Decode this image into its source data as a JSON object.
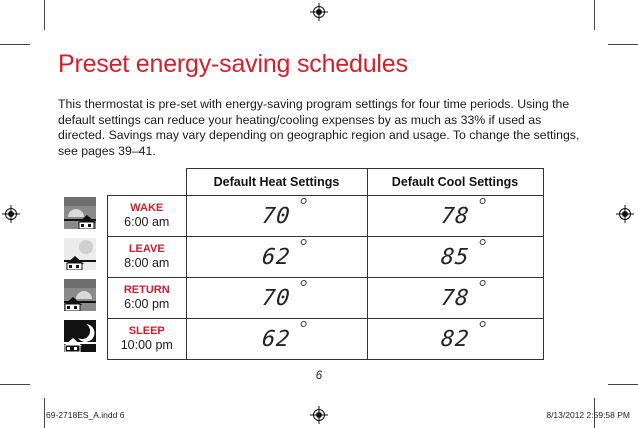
{
  "title": "Preset energy-saving schedules",
  "intro": "This thermostat is pre-set with energy-saving program settings for four time periods. Using the default settings can reduce your heating/cooling expenses by as much as 33% if used as directed. Savings may vary depending on geographic region and usage. To change the settings, see pages 39–41.",
  "table": {
    "headers": [
      "Default Heat Settings",
      "Default Cool Settings"
    ],
    "rows": [
      {
        "period": "WAKE",
        "time": "6:00 am",
        "heat": "70",
        "cool": "78",
        "icon": "sunrise-house-icon"
      },
      {
        "period": "LEAVE",
        "time": "8:00 am",
        "heat": "62",
        "cool": "85",
        "icon": "sun-house-icon"
      },
      {
        "period": "RETURN",
        "time": "6:00 pm",
        "heat": "70",
        "cool": "78",
        "icon": "sunset-house-icon"
      },
      {
        "period": "SLEEP",
        "time": "10:00 pm",
        "heat": "62",
        "cool": "82",
        "icon": "moon-house-icon"
      }
    ]
  },
  "page_number": "6",
  "footer": {
    "left": "69-2718ES_A.indd   6",
    "right": "8/13/2012   2:59:58 PM"
  },
  "colors": {
    "accent": "#d0222e",
    "text": "#1a1a1a"
  }
}
